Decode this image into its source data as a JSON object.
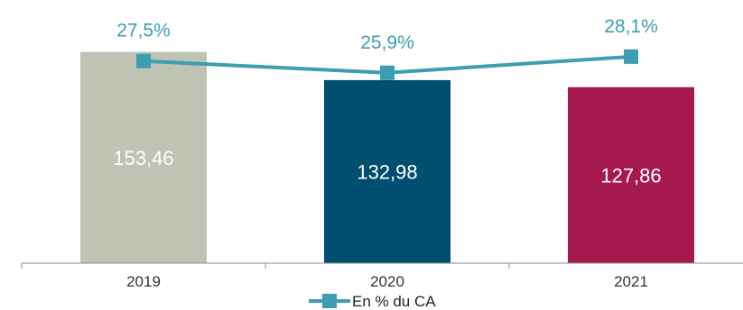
{
  "chart_data": {
    "type": "bar",
    "categories": [
      "2019",
      "2020",
      "2021"
    ],
    "bar_values": [
      153.46,
      132.98,
      127.86
    ],
    "bar_labels": [
      "153,46",
      "132,98",
      "127,86"
    ],
    "bar_colors": [
      "#bfc3b4",
      "#004f71",
      "#a5194f"
    ],
    "bar_ylim": [
      0,
      165
    ],
    "line_series": {
      "name": "En % du CA",
      "values": [
        27.5,
        25.9,
        28.1
      ],
      "labels": [
        "27,5%",
        "25,9%",
        "28,1%"
      ],
      "color": "#3d9eb2"
    },
    "line_ylim": [
      0,
      30.9
    ],
    "legend_position": "bottom-center",
    "grid": false
  }
}
